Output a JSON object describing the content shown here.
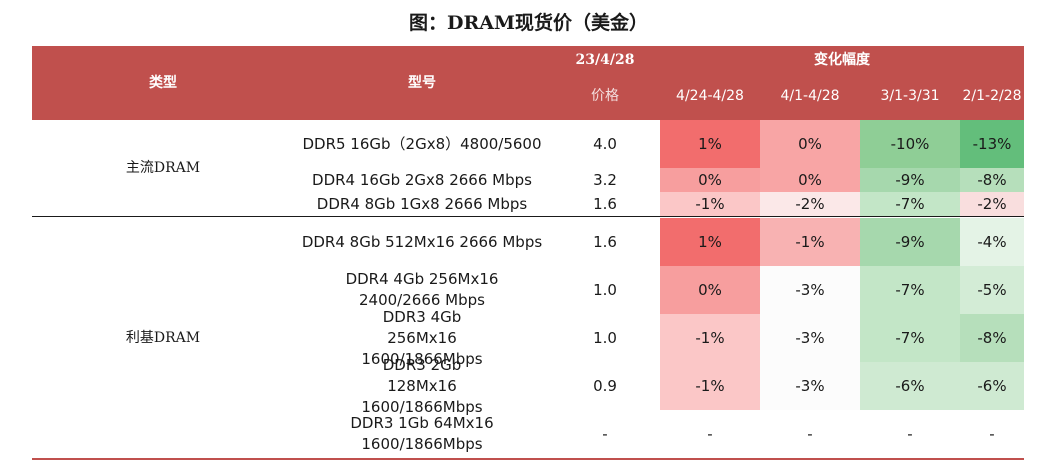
{
  "title": "图：DRAM现货价（美金）",
  "header": {
    "type_label": "类型",
    "model_label": "型号",
    "date_label": "23/4/28",
    "price_label": "价格",
    "change_label": "变化幅度",
    "periods": [
      "4/24-4/28",
      "4/1-4/28",
      "3/1-3/31",
      "2/1-2/28"
    ]
  },
  "groups": [
    {
      "label": "主流DRAM"
    },
    {
      "label": "利基DRAM"
    }
  ],
  "rows": [
    {
      "model": "DDR5 16Gb（2Gx8）4800/5600",
      "price": "4.0",
      "changes": [
        "1%",
        "0%",
        "-10%",
        "-13%"
      ]
    },
    {
      "model": "DDR4 16Gb 2Gx8 2666 Mbps",
      "price": "3.2",
      "changes": [
        "0%",
        "0%",
        "-9%",
        "-8%"
      ]
    },
    {
      "model": "DDR4 8Gb 1Gx8 2666 Mbps",
      "price": "1.6",
      "changes": [
        "-1%",
        "-2%",
        "-7%",
        "-2%"
      ]
    },
    {
      "model": "DDR4 8Gb 512Mx16 2666 Mbps",
      "price": "1.6",
      "changes": [
        "1%",
        "-1%",
        "-9%",
        "-4%"
      ]
    },
    {
      "model": "DDR4 4Gb 256Mx16 2400/2666 Mbps",
      "price": "1.0",
      "changes": [
        "0%",
        "-3%",
        "-7%",
        "-5%"
      ]
    },
    {
      "model": "DDR3 4Gb 256Mx16 1600/1866Mbps",
      "price": "1.0",
      "changes": [
        "-1%",
        "-3%",
        "-7%",
        "-8%"
      ]
    },
    {
      "model": "DDR3 2Gb 128Mx16 1600/1866Mbps",
      "price": "0.9",
      "changes": [
        "-1%",
        "-3%",
        "-6%",
        "-6%"
      ]
    },
    {
      "model": "DDR3 1Gb 64Mx16 1600/1866Mbps",
      "price": "-",
      "changes": [
        "-",
        "-",
        "-",
        "-"
      ]
    }
  ],
  "cell_colors": [
    [
      "#f26d6d",
      "#f8a5a5",
      "#8fce96",
      "#63be7b"
    ],
    [
      "#f79e9e",
      "#f8a5a5",
      "#a6d8ad",
      "#b6dfbb"
    ],
    [
      "#fbc7c7",
      "#fbe8e8",
      "#c3e6c7",
      "#f9dede"
    ],
    [
      "#f26d6d",
      "#f8b2b2",
      "#a6d8ad",
      "#e4f3e6"
    ],
    [
      "#f79e9e",
      "#fcfcfc",
      "#c3e6c7",
      "#d3ecd6"
    ],
    [
      "#fbc7c7",
      "#fcfcfc",
      "#c3e6c7",
      "#b6dfbb"
    ],
    [
      "#fbc7c7",
      "#fcfcfc",
      "#cfead2",
      "#cfead2"
    ],
    [
      "#ffffff",
      "#ffffff",
      "#ffffff",
      "#ffffff"
    ]
  ]
}
